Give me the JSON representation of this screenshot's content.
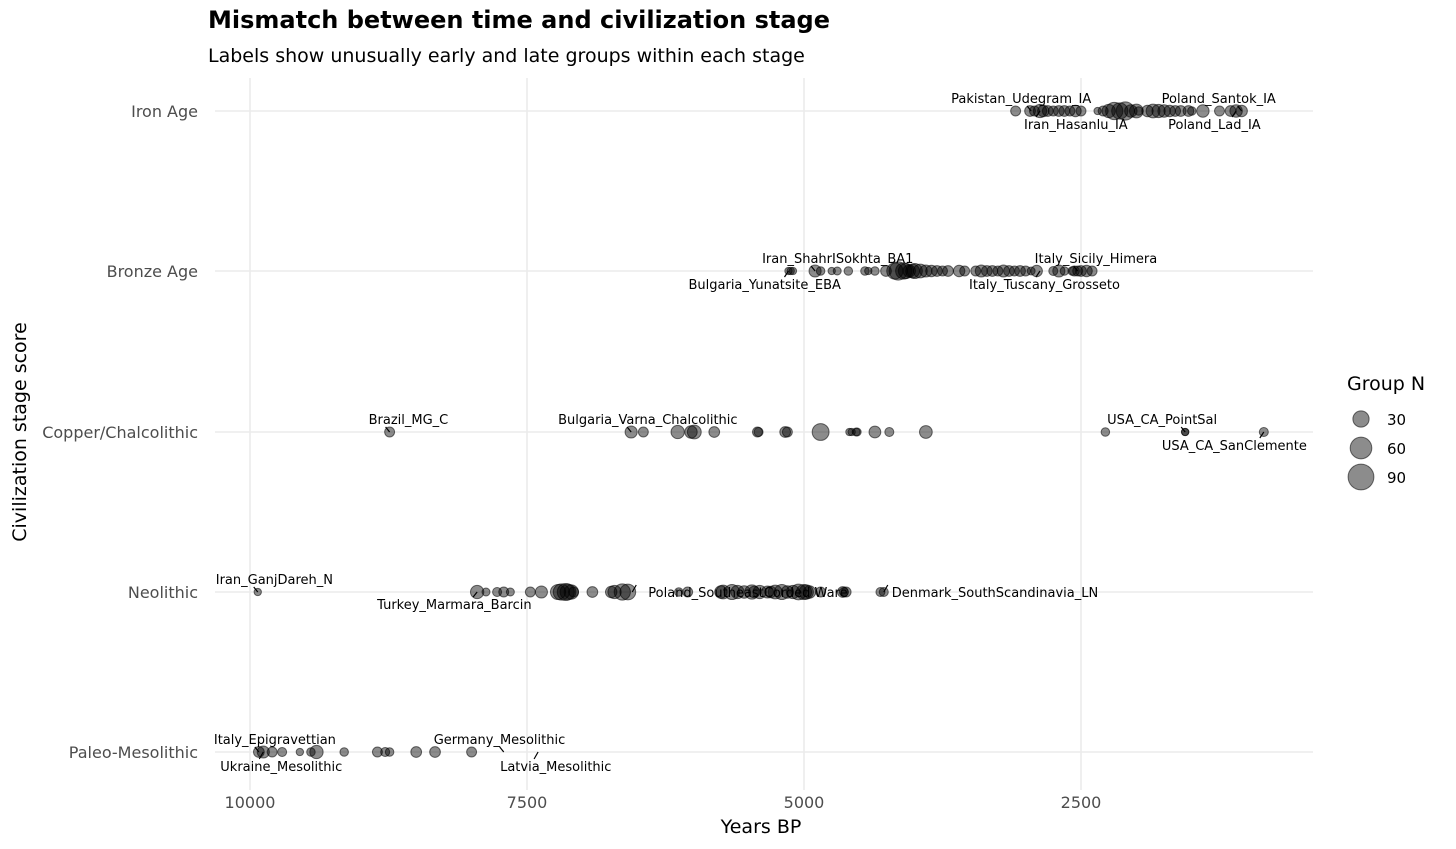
{
  "chart_data": {
    "type": "scatter",
    "title": "Mismatch between time and civilization stage",
    "subtitle": "Labels show unusually early and late groups within each stage",
    "xlabel": "Years BP",
    "ylabel": "Civilization stage score",
    "x_reversed": true,
    "xlim": [
      10350,
      750
    ],
    "x_ticks": [
      10000,
      7500,
      5000,
      2500
    ],
    "x_tick_labels": [
      "10000",
      "7500",
      "5000",
      "2500"
    ],
    "categories": [
      "Paleo-Mesolithic",
      "Neolithic",
      "Copper/Chalcolithic",
      "Bronze Age",
      "Iron Age"
    ],
    "grid": true,
    "legend": {
      "title": "Group N",
      "position": "right",
      "sizes": [
        30,
        60,
        90
      ],
      "labels": [
        "30",
        "60",
        "90"
      ]
    },
    "point_color": "#000000",
    "point_alpha": 0.45,
    "points": [
      {
        "stage": "Paleo-Mesolithic",
        "x": [
          9920,
          9880,
          9800,
          9710,
          9550,
          9450,
          9400,
          9150,
          8850,
          8780,
          8740,
          8500,
          8330,
          8000
        ],
        "n": [
          10,
          14,
          8,
          6,
          3,
          5,
          18,
          5,
          8,
          6,
          5,
          10,
          10,
          8
        ]
      },
      {
        "stage": "Neolithic",
        "x": [
          9930,
          7950,
          7870,
          7770,
          7710,
          7650,
          7470,
          7370,
          7220,
          7190,
          7150,
          7130,
          7100,
          7080,
          6910,
          6740,
          6710,
          6640,
          6590,
          6130,
          6050,
          5750,
          5730,
          5650,
          5600,
          5540,
          5470,
          5450,
          5400,
          5330,
          5300,
          5260,
          5200,
          5150,
          5100,
          5050,
          5000,
          4980,
          4950,
          4850,
          4650,
          4640,
          4620,
          4310,
          4280
        ],
        "n": [
          3,
          18,
          4,
          6,
          8,
          4,
          8,
          14,
          25,
          30,
          34,
          28,
          22,
          8,
          10,
          12,
          18,
          30,
          28,
          5,
          8,
          15,
          20,
          25,
          18,
          15,
          22,
          12,
          18,
          14,
          12,
          20,
          25,
          15,
          18,
          28,
          25,
          22,
          15,
          8,
          10,
          6,
          8,
          6,
          6
        ]
      },
      {
        "stage": "Copper/Chalcolithic",
        "x": [
          8740,
          6560,
          6450,
          6140,
          6020,
          5990,
          5810,
          5420,
          5410,
          5170,
          5150,
          4850,
          4590,
          4570,
          4530,
          4520,
          4360,
          4230,
          3900,
          2280,
          1560,
          1560,
          850
        ],
        "n": [
          8,
          14,
          8,
          18,
          15,
          20,
          10,
          8,
          6,
          10,
          8,
          33,
          3,
          3,
          4,
          4,
          13,
          6,
          16,
          5,
          3,
          3,
          6
        ]
      },
      {
        "stage": "Bronze Age",
        "x": [
          5140,
          5120,
          5100,
          4900,
          4850,
          4750,
          4700,
          4600,
          4450,
          4420,
          4360,
          4260,
          4180,
          4150,
          4100,
          4080,
          4050,
          4020,
          4000,
          3950,
          3900,
          3850,
          3800,
          3750,
          3700,
          3600,
          3550,
          3450,
          3400,
          3350,
          3300,
          3250,
          3200,
          3150,
          3100,
          3050,
          3000,
          2950,
          2900,
          2750,
          2700,
          2650,
          2580,
          2560,
          2530,
          2500,
          2450,
          2400
        ],
        "n": [
          3,
          3,
          3,
          14,
          5,
          3,
          4,
          5,
          5,
          3,
          5,
          10,
          30,
          40,
          30,
          25,
          15,
          20,
          25,
          20,
          14,
          12,
          10,
          8,
          10,
          12,
          8,
          8,
          14,
          10,
          10,
          8,
          14,
          10,
          8,
          10,
          8,
          4,
          12,
          6,
          14,
          5,
          5,
          8,
          8,
          10,
          12,
          8
        ]
      },
      {
        "stage": "Iron Age",
        "x": [
          3090,
          2960,
          2920,
          2870,
          2840,
          2800,
          2750,
          2700,
          2650,
          2600,
          2550,
          2500,
          2350,
          2300,
          2250,
          2200,
          2150,
          2100,
          2050,
          2000,
          1980,
          1900,
          1850,
          1800,
          1750,
          1700,
          1650,
          1600,
          1530,
          1500,
          1400,
          1250,
          1150,
          1100,
          1050
        ],
        "n": [
          8,
          10,
          8,
          18,
          12,
          10,
          8,
          10,
          10,
          8,
          12,
          8,
          3,
          8,
          18,
          35,
          30,
          40,
          15,
          20,
          5,
          12,
          20,
          18,
          15,
          12,
          10,
          10,
          10,
          5,
          15,
          8,
          10,
          15,
          12
        ]
      }
    ],
    "labels": [
      {
        "text": "Iran_GanjDareh_N",
        "stage": "Neolithic",
        "x": 9930
      },
      {
        "text": "Turkey_Marmara_Barcin",
        "stage": "Neolithic",
        "x": 7950
      },
      {
        "text": "Poland_SoutheastCorded Ware",
        "stage": "Neolithic",
        "x": 6550
      },
      {
        "text": "Denmark_SouthScandinavia_LN",
        "stage": "Neolithic",
        "x": 4280
      },
      {
        "text": "Italy_Epigravettian",
        "stage": "Paleo-Mesolithic",
        "x": 9920
      },
      {
        "text": "Ukraine_Mesolithic",
        "stage": "Paleo-Mesolithic",
        "x": 9880
      },
      {
        "text": "Germany_Mesolithic",
        "stage": "Paleo-Mesolithic",
        "x": 7710
      },
      {
        "text": "Latvia_Mesolithic",
        "stage": "Paleo-Mesolithic",
        "x": 7400
      },
      {
        "text": "Brazil_MG_C",
        "stage": "Copper/Chalcolithic",
        "x": 8740
      },
      {
        "text": "Bulgaria_Varna_Chalcolithic",
        "stage": "Copper/Chalcolithic",
        "x": 6560
      },
      {
        "text": "USA_CA_PointSal",
        "stage": "Copper/Chalcolithic",
        "x": 1560
      },
      {
        "text": "USA_CA_SanClemente",
        "stage": "Copper/Chalcolithic",
        "x": 850
      },
      {
        "text": "Iran_ShahrISokhta_BA1",
        "stage": "Bronze Age",
        "x": 4900
      },
      {
        "text": "Bulgaria_Yunatsite_EBA",
        "stage": "Bronze Age",
        "x": 5140
      },
      {
        "text": "Italy_Sicily_Himera",
        "stage": "Bronze Age",
        "x": 2530
      },
      {
        "text": "Italy_Tuscany_Grosseto",
        "stage": "Bronze Age",
        "x": 2870
      },
      {
        "text": "Pakistan_Udegram_IA",
        "stage": "Iron Age",
        "x": 2950
      },
      {
        "text": "Iran_Hasanlu_IA",
        "stage": "Iron Age",
        "x": 2870
      },
      {
        "text": "Poland_Santok_IA",
        "stage": "Iron Age",
        "x": 1050
      },
      {
        "text": "Poland_Lad_IA",
        "stage": "Iron Age",
        "x": 1100
      }
    ]
  }
}
